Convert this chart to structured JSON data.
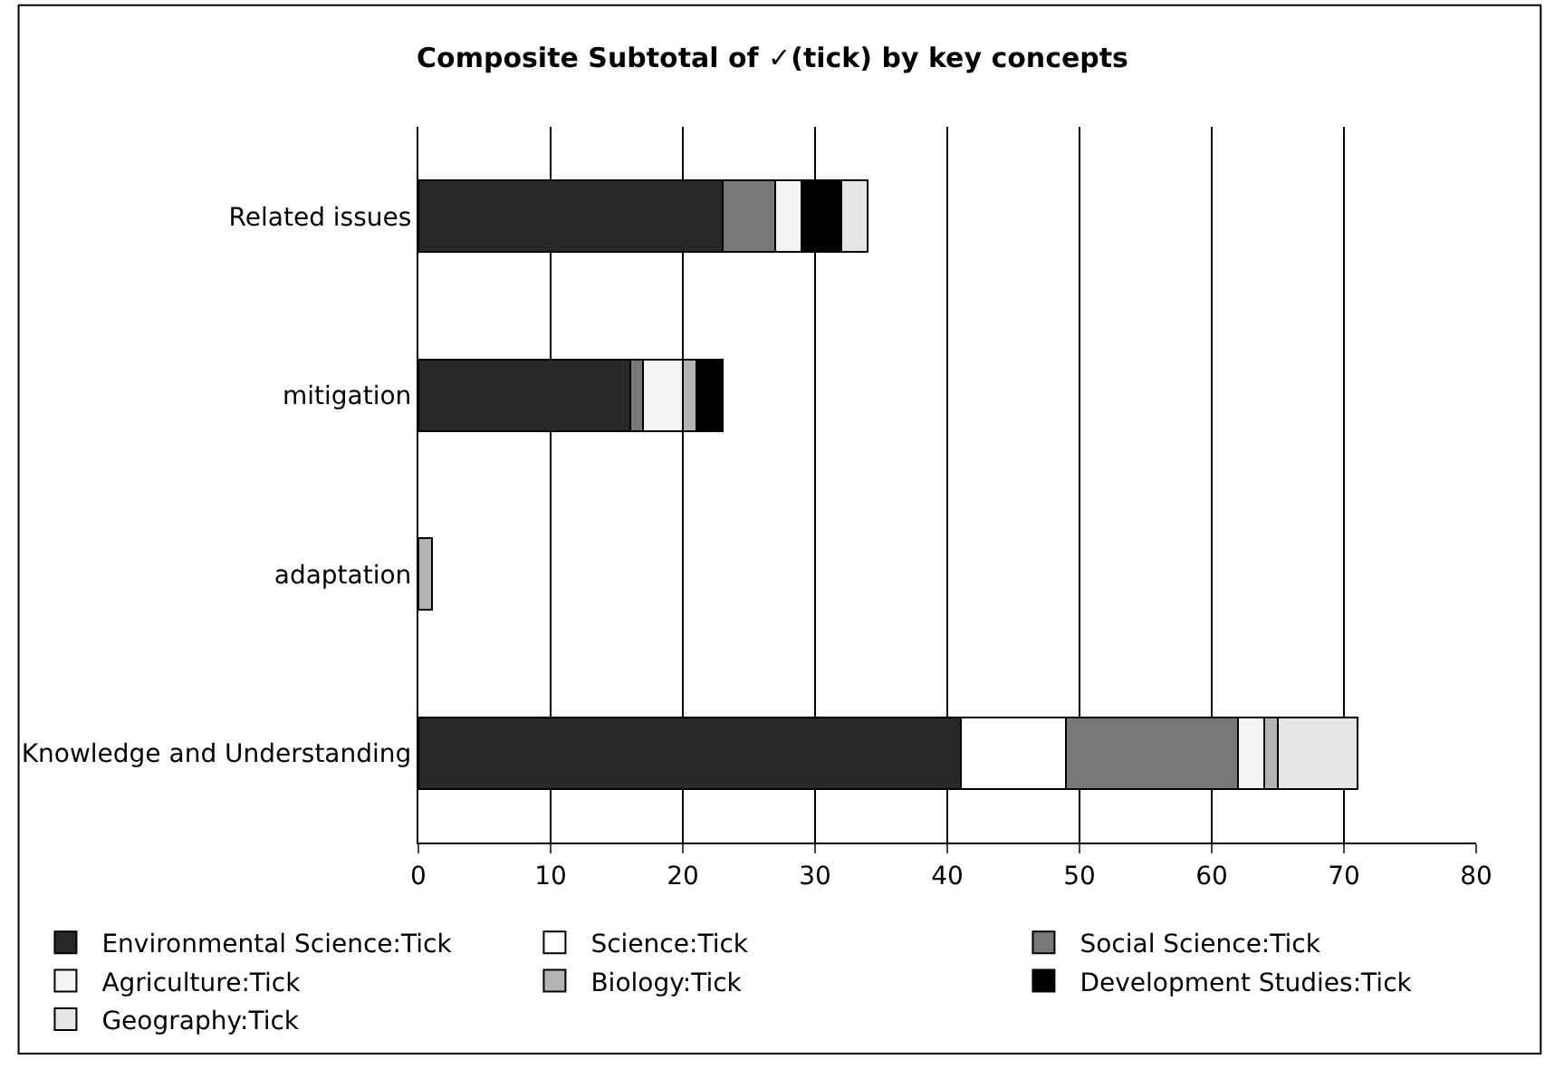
{
  "chart_data": {
    "type": "bar",
    "orientation": "horizontal",
    "stacked": true,
    "title": "Composite Subtotal of ✓(tick) by key concepts",
    "categories": [
      "Related issues",
      "mitigation",
      "adaptation",
      "Knowledge and Understanding"
    ],
    "series": [
      {
        "name": "Environmental Science:Tick",
        "color": "#282828",
        "values": [
          23,
          16,
          null,
          41
        ]
      },
      {
        "name": "Science:Tick",
        "color": "#ffffff",
        "values": [
          null,
          null,
          null,
          8
        ]
      },
      {
        "name": "Social Science:Tick",
        "color": "#78787a",
        "values": [
          4,
          1,
          null,
          13
        ]
      },
      {
        "name": "Agriculture:Tick",
        "color": "#f4f4f4",
        "values": [
          2,
          3,
          null,
          2
        ]
      },
      {
        "name": "Biology:Tick",
        "color": "#b4b4b4",
        "values": [
          null,
          1,
          1,
          1
        ]
      },
      {
        "name": "Development Studies:Tick",
        "color": "#000000",
        "values": [
          3,
          2,
          null,
          null
        ]
      },
      {
        "name": "Geography:Tick",
        "color": "#e4e5e6",
        "values": [
          2,
          null,
          null,
          6
        ]
      }
    ],
    "xlim": [
      0,
      80
    ],
    "xticks": [
      0,
      10,
      20,
      30,
      40,
      50,
      60,
      70,
      80
    ],
    "grid": "x",
    "legend": "bottom"
  }
}
